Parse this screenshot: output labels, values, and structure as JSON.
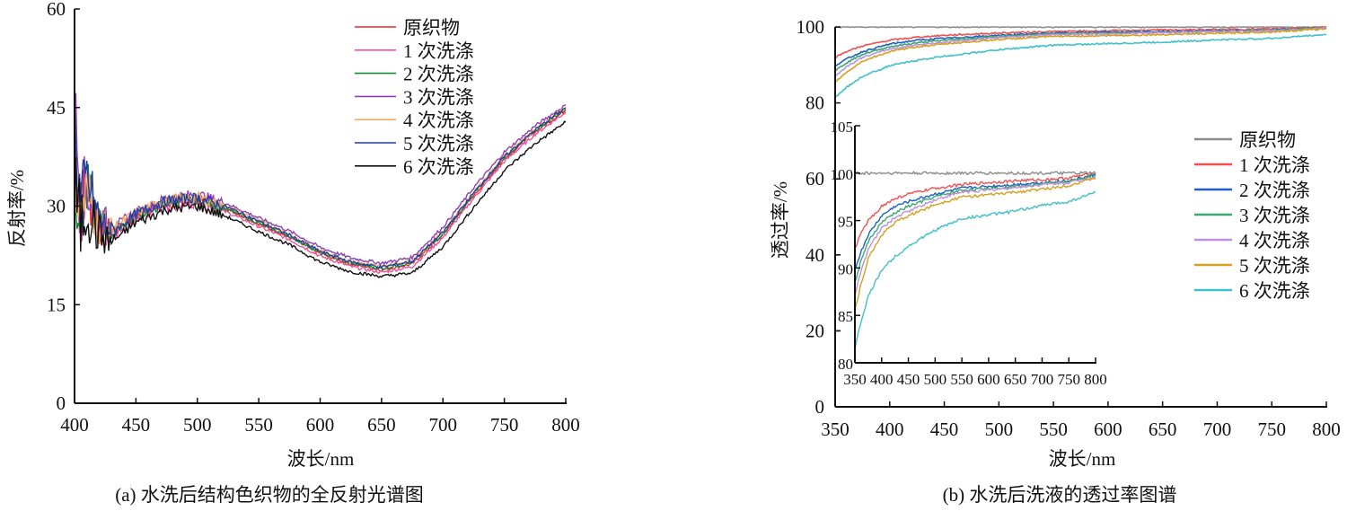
{
  "chart_data": [
    {
      "type": "line",
      "caption": "(a) 水洗后结构色织物的全反射光谱图",
      "xlabel": "波长/nm",
      "ylabel": "反射率/%",
      "xlim": [
        400,
        800
      ],
      "ylim": [
        0,
        60
      ],
      "xticks": [
        400,
        450,
        500,
        550,
        600,
        650,
        700,
        750,
        800
      ],
      "yticks": [
        0,
        15,
        30,
        45,
        60
      ],
      "legend_position": "top-right",
      "x": [
        400,
        405,
        410,
        420,
        430,
        450,
        475,
        500,
        525,
        550,
        575,
        600,
        625,
        650,
        675,
        700,
        725,
        750,
        775,
        800
      ],
      "series": [
        {
          "name": "原织物",
          "color": "#e8262a",
          "values": [
            40,
            30,
            33,
            27,
            26,
            28.5,
            30.5,
            31,
            29.5,
            27.3,
            25.3,
            22.8,
            21.2,
            20.3,
            21.2,
            25.6,
            31.6,
            37.2,
            41.3,
            44.6
          ]
        },
        {
          "name": "1 次洗涤",
          "color": "#f0509a",
          "values": [
            38,
            29,
            31,
            26.5,
            25.5,
            28,
            30,
            30.5,
            29,
            26.9,
            24.9,
            22.4,
            20.8,
            19.9,
            20.8,
            25.2,
            31.2,
            36.8,
            40.9,
            44.3
          ]
        },
        {
          "name": "2 次洗涤",
          "color": "#138a3a",
          "values": [
            36,
            28,
            32,
            27,
            26,
            28.5,
            30.5,
            31,
            29.5,
            27.4,
            25.4,
            22.9,
            21.3,
            20.5,
            21.4,
            25.8,
            31.8,
            37.4,
            41.5,
            44.8
          ]
        },
        {
          "name": "3 次洗涤",
          "color": "#8e3fb0",
          "values": [
            45,
            31,
            33,
            28,
            27,
            29,
            31.2,
            31.8,
            30.3,
            28.2,
            26.2,
            23.7,
            22.1,
            21.3,
            22.2,
            26.8,
            32.8,
            38.2,
            42.2,
            45.4
          ]
        },
        {
          "name": "4 次洗涤",
          "color": "#f4a868",
          "values": [
            37,
            29,
            32,
            27.5,
            26.5,
            29,
            31,
            31.4,
            29.9,
            27.8,
            25.7,
            23.2,
            21.6,
            20.8,
            21.7,
            26.1,
            32.1,
            37.6,
            41.7,
            45
          ]
        },
        {
          "name": "5 次洗涤",
          "color": "#1f3fa0",
          "values": [
            42,
            30,
            34,
            28,
            26,
            28.8,
            30.8,
            31.3,
            29.8,
            27.7,
            25.6,
            23.1,
            21.5,
            20.7,
            21.6,
            26,
            32,
            37.5,
            41.6,
            45
          ]
        },
        {
          "name": "6 次洗涤",
          "color": "#111111",
          "values": [
            33,
            27,
            30,
            25.5,
            24.5,
            27.5,
            29.5,
            30,
            28.3,
            26.1,
            24.1,
            21.5,
            20,
            19.3,
            19.8,
            23.8,
            29.8,
            35.4,
            39.5,
            42.8
          ]
        }
      ]
    },
    {
      "type": "line",
      "caption": "(b) 水洗后洗液的透过率图谱",
      "xlabel": "波长/nm",
      "ylabel": "透过率/%",
      "xlim": [
        350,
        800
      ],
      "ylim": [
        0,
        100
      ],
      "xticks": [
        350,
        400,
        450,
        500,
        550,
        600,
        650,
        700,
        750,
        800
      ],
      "yticks": [
        0,
        20,
        40,
        60,
        80,
        100
      ],
      "inset": {
        "xlim": [
          350,
          800
        ],
        "ylim": [
          80,
          105
        ],
        "xticks": [
          350,
          400,
          450,
          500,
          550,
          600,
          650,
          700,
          750,
          800
        ],
        "yticks": [
          80,
          85,
          90,
          95,
          100,
          105
        ]
      },
      "legend_position": "right",
      "x": [
        350,
        360,
        375,
        400,
        425,
        450,
        500,
        550,
        600,
        650,
        700,
        750,
        800
      ],
      "series": [
        {
          "name": "原织物",
          "color": "#8a8a8a",
          "values": [
            100,
            100,
            100,
            100,
            100,
            100,
            100,
            100,
            100,
            100,
            100,
            100,
            100
          ]
        },
        {
          "name": "1 次洗涤",
          "color": "#f05050",
          "values": [
            92,
            93.5,
            95,
            96.5,
            97.3,
            97.8,
            98.4,
            98.8,
            99,
            99.2,
            99.3,
            99.5,
            100
          ]
        },
        {
          "name": "2 次洗涤",
          "color": "#2060c0",
          "values": [
            89.8,
            91.5,
            93.5,
            95.5,
            96.5,
            97,
            97.8,
            98.4,
            98.6,
            98.8,
            99,
            99.2,
            99.8
          ]
        },
        {
          "name": "3 次洗涤",
          "color": "#3aa870",
          "values": [
            88.5,
            90.5,
            92.8,
            94.8,
            95.8,
            96.5,
            97.5,
            98.2,
            98.4,
            98.6,
            98.9,
            99.1,
            99.8
          ]
        },
        {
          "name": "4 次洗涤",
          "color": "#c090d8",
          "values": [
            87,
            89.5,
            92,
            94.2,
            95.3,
            96,
            97.2,
            98,
            98.2,
            98.5,
            98.8,
            99,
            99.6
          ]
        },
        {
          "name": "5 次洗涤",
          "color": "#d4a020",
          "values": [
            85.5,
            88,
            91,
            93.5,
            94.8,
            95.5,
            96.7,
            97.5,
            97.7,
            98,
            98.3,
            98.7,
            99.5
          ]
        },
        {
          "name": "6 次洗涤",
          "color": "#40c0c8",
          "values": [
            81.5,
            84,
            87,
            89.8,
            91.2,
            92.3,
            94,
            95.2,
            95.6,
            96,
            96.6,
            97,
            98
          ]
        }
      ]
    }
  ]
}
